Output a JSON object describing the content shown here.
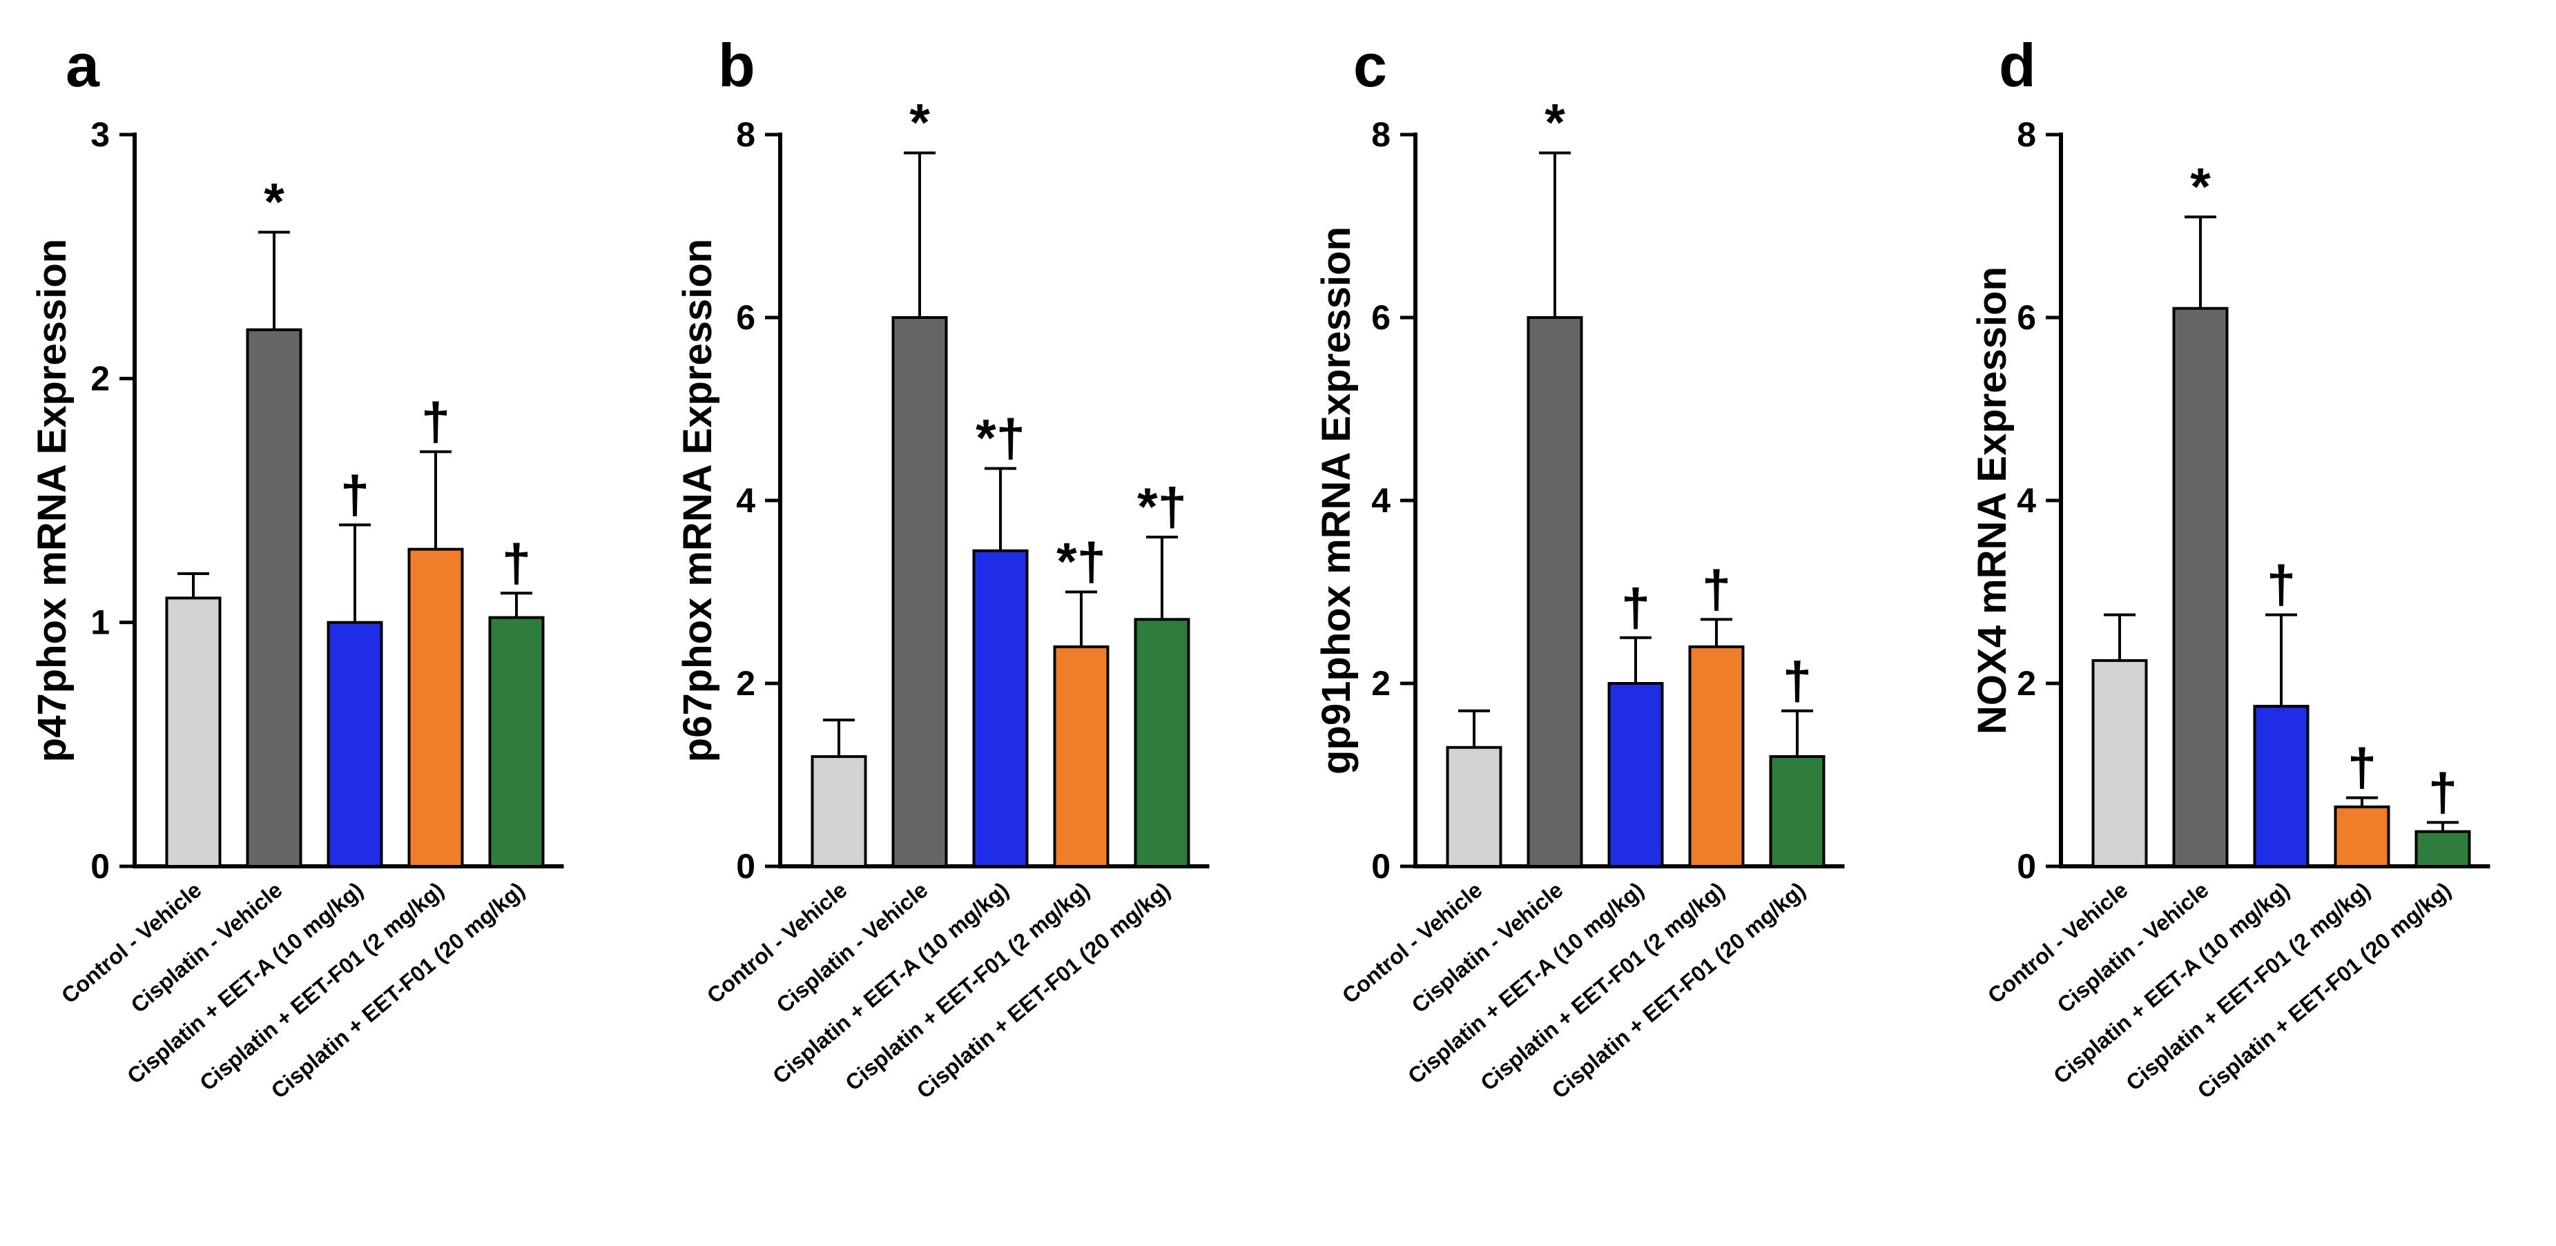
{
  "chart_data": [
    {
      "panel": "a",
      "type": "bar",
      "title": "",
      "ylabel": "p47phox mRNA Expression",
      "xlabel": "",
      "ylim": [
        0,
        3
      ],
      "yticks": [
        0,
        1,
        2,
        3
      ],
      "categories": [
        "Control - Vehicle",
        "Cisplatin - Vehicle",
        "Cisplatin + EET-A (10 mg/kg)",
        "Cisplatin + EET-F01 (2 mg/kg)",
        "Cisplatin + EET-F01 (20 mg/kg)"
      ],
      "values": [
        1.1,
        2.2,
        1.0,
        1.3,
        1.02
      ],
      "errors": [
        0.1,
        0.4,
        0.4,
        0.4,
        0.1
      ],
      "annotations": [
        "",
        "*",
        "†",
        "†",
        "†"
      ],
      "colors": [
        "#d3d3d3",
        "#666666",
        "#1f2de6",
        "#f07d2a",
        "#2f7d3c"
      ]
    },
    {
      "panel": "b",
      "type": "bar",
      "title": "",
      "ylabel": "p67phox mRNA Expression",
      "xlabel": "",
      "ylim": [
        0,
        8
      ],
      "yticks": [
        0,
        2,
        4,
        6,
        8
      ],
      "categories": [
        "Control - Vehicle",
        "Cisplatin - Vehicle",
        "Cisplatin + EET-A (10 mg/kg)",
        "Cisplatin + EET-F01 (2 mg/kg)",
        "Cisplatin + EET-F01 (20 mg/kg)"
      ],
      "values": [
        1.2,
        6.0,
        3.45,
        2.4,
        2.7
      ],
      "errors": [
        0.4,
        1.8,
        0.9,
        0.6,
        0.9
      ],
      "annotations": [
        "",
        "*",
        "*†",
        "*†",
        "*†"
      ],
      "colors": [
        "#d3d3d3",
        "#666666",
        "#1f2de6",
        "#f07d2a",
        "#2f7d3c"
      ]
    },
    {
      "panel": "c",
      "type": "bar",
      "title": "",
      "ylabel": "gp91phox mRNA Expression",
      "xlabel": "",
      "ylim": [
        0,
        8
      ],
      "yticks": [
        0,
        2,
        4,
        6,
        8
      ],
      "categories": [
        "Control - Vehicle",
        "Cisplatin - Vehicle",
        "Cisplatin + EET-A (10 mg/kg)",
        "Cisplatin + EET-F01 (2 mg/kg)",
        "Cisplatin + EET-F01 (20 mg/kg)"
      ],
      "values": [
        1.3,
        6.0,
        2.0,
        2.4,
        1.2
      ],
      "errors": [
        0.4,
        1.8,
        0.5,
        0.3,
        0.5
      ],
      "annotations": [
        "",
        "*",
        "†",
        "†",
        "†"
      ],
      "colors": [
        "#d3d3d3",
        "#666666",
        "#1f2de6",
        "#f07d2a",
        "#2f7d3c"
      ]
    },
    {
      "panel": "d",
      "type": "bar",
      "title": "",
      "ylabel": "NOX4 mRNA Expression",
      "xlabel": "",
      "ylim": [
        0,
        8
      ],
      "yticks": [
        0,
        2,
        4,
        6,
        8
      ],
      "categories": [
        "Control - Vehicle",
        "Cisplatin - Vehicle",
        "Cisplatin + EET-A (10 mg/kg)",
        "Cisplatin + EET-F01 (2 mg/kg)",
        "Cisplatin + EET-F01 (20 mg/kg)"
      ],
      "values": [
        2.25,
        6.1,
        1.75,
        0.65,
        0.38
      ],
      "errors": [
        0.5,
        1.0,
        1.0,
        0.1,
        0.1
      ],
      "annotations": [
        "",
        "*",
        "†",
        "†",
        "†"
      ],
      "colors": [
        "#d3d3d3",
        "#666666",
        "#1f2de6",
        "#f07d2a",
        "#2f7d3c"
      ]
    }
  ]
}
